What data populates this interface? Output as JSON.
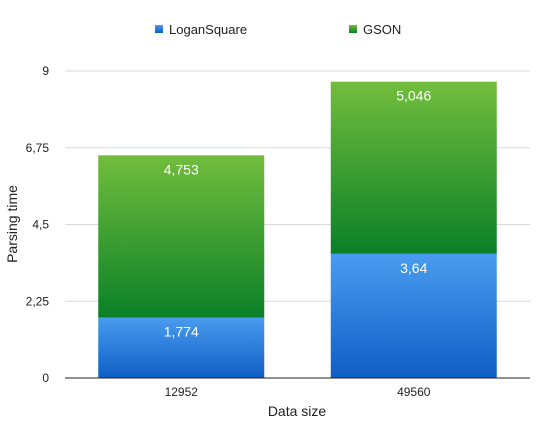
{
  "chart_data": {
    "type": "bar",
    "stacked": true,
    "categories": [
      "12952",
      "49560"
    ],
    "series": [
      {
        "name": "LoganSquare",
        "values": [
          1.774,
          3.64
        ],
        "labels": [
          "1,774",
          "3,64"
        ],
        "color": "#2a78d6"
      },
      {
        "name": "GSON",
        "values": [
          4.753,
          5.046
        ],
        "labels": [
          "4,753",
          "5,046"
        ],
        "color": "#4fa83a"
      }
    ],
    "xlabel": "Data size",
    "ylabel": "Parsing time",
    "ylim": [
      0,
      9
    ],
    "yticks": [
      0,
      2.25,
      4.5,
      6.75,
      9
    ],
    "ytick_labels": [
      "0",
      "2,25",
      "4,5",
      "6,75",
      "9"
    ],
    "grid": true,
    "legend_position": "top"
  }
}
